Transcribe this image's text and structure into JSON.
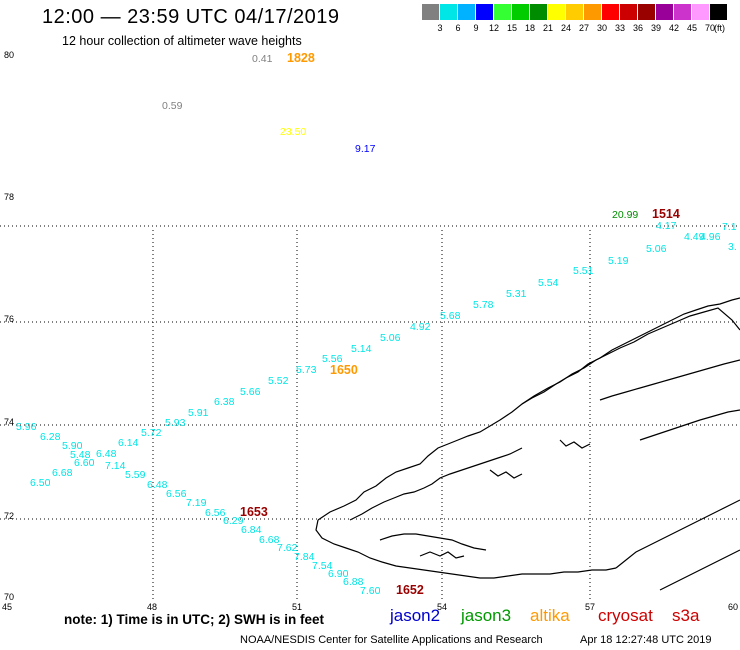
{
  "header": {
    "title": "12:00 — 23:59 UTC 04/17/2019",
    "subtitle": "12 hour collection of altimeter wave heights"
  },
  "legend": {
    "colors": [
      "#808080",
      "#00e5e5",
      "#00b2ff",
      "#0000ff",
      "#33ff33",
      "#00cc00",
      "#008c00",
      "#ffff00",
      "#ffcc00",
      "#ff9900",
      "#ff0000",
      "#cc0000",
      "#990000",
      "#990099",
      "#cc33cc",
      "#ff99ff",
      "#000000"
    ],
    "ticks": [
      "3",
      "6",
      "9",
      "12",
      "15",
      "18",
      "21",
      "24",
      "27",
      "30",
      "33",
      "36",
      "39",
      "42",
      "45",
      "70"
    ],
    "unit": "(ft)"
  },
  "axes": {
    "lat_labels": [
      "80",
      "78",
      "76",
      "74",
      "72",
      "70"
    ],
    "lon_labels": [
      "45",
      "48",
      "51",
      "54",
      "57",
      "60"
    ]
  },
  "points": [
    {
      "t": "0.41",
      "c": "#808080"
    },
    {
      "t": "1828",
      "c": "#ff9900",
      "bold": true
    },
    {
      "t": "0.59",
      "c": "#808080"
    },
    {
      "t": "23.50",
      "c": "#ffff00"
    },
    {
      "t": "9.17",
      "c": "#0000ff"
    },
    {
      "t": "20.99",
      "c": "#008c00"
    },
    {
      "t": "1514",
      "c": "#990000",
      "bold": true
    },
    {
      "t": "4.17",
      "c": "#00e5e5"
    },
    {
      "t": "7.1",
      "c": "#00e5e5"
    },
    {
      "t": "4.49",
      "c": "#00e5e5"
    },
    {
      "t": "4.96",
      "c": "#00e5e5"
    },
    {
      "t": "3.",
      "c": "#00e5e5"
    },
    {
      "t": "5.06",
      "c": "#00e5e5"
    },
    {
      "t": "5.19",
      "c": "#00e5e5"
    },
    {
      "t": "5.51",
      "c": "#00e5e5"
    },
    {
      "t": "5.54",
      "c": "#00e5e5"
    },
    {
      "t": "5.31",
      "c": "#00e5e5"
    },
    {
      "t": "5.78",
      "c": "#00e5e5"
    },
    {
      "t": "5.68",
      "c": "#00e5e5"
    },
    {
      "t": "4.92",
      "c": "#00e5e5"
    },
    {
      "t": "5.06",
      "c": "#00e5e5"
    },
    {
      "t": "5.14",
      "c": "#00e5e5"
    },
    {
      "t": "5.56",
      "c": "#00e5e5"
    },
    {
      "t": "5.73",
      "c": "#00e5e5"
    },
    {
      "t": "1650",
      "c": "#ff9900",
      "bold": true
    },
    {
      "t": "5.52",
      "c": "#00e5e5"
    },
    {
      "t": "5.66",
      "c": "#00e5e5"
    },
    {
      "t": "6.38",
      "c": "#00e5e5"
    },
    {
      "t": "5.91",
      "c": "#00e5e5"
    },
    {
      "t": "5.93",
      "c": "#00e5e5"
    },
    {
      "t": "5.72",
      "c": "#00e5e5"
    },
    {
      "t": "5.96",
      "c": "#00e5e5"
    },
    {
      "t": "6.28",
      "c": "#00e5e5"
    },
    {
      "t": "5.90",
      "c": "#00e5e5"
    },
    {
      "t": "6.14",
      "c": "#00e5e5"
    },
    {
      "t": "5.48",
      "c": "#00e5e5"
    },
    {
      "t": "6.48",
      "c": "#00e5e5"
    },
    {
      "t": "6.60",
      "c": "#00e5e5"
    },
    {
      "t": "7.14",
      "c": "#00e5e5"
    },
    {
      "t": "6.68",
      "c": "#00e5e5"
    },
    {
      "t": "5.59",
      "c": "#00e5e5"
    },
    {
      "t": "6.50",
      "c": "#00e5e5"
    },
    {
      "t": "6.48",
      "c": "#00e5e5"
    },
    {
      "t": "6.56",
      "c": "#00e5e5"
    },
    {
      "t": "7.19",
      "c": "#00e5e5"
    },
    {
      "t": "6.56",
      "c": "#00e5e5"
    },
    {
      "t": "1653",
      "c": "#990000",
      "bold": true
    },
    {
      "t": "6.29",
      "c": "#00e5e5"
    },
    {
      "t": "6.84",
      "c": "#00e5e5"
    },
    {
      "t": "6.68",
      "c": "#00e5e5"
    },
    {
      "t": "7.62",
      "c": "#00e5e5"
    },
    {
      "t": "7.84",
      "c": "#00e5e5"
    },
    {
      "t": "7.54",
      "c": "#00e5e5"
    },
    {
      "t": "6.90",
      "c": "#00e5e5"
    },
    {
      "t": "6.88",
      "c": "#00e5e5"
    },
    {
      "t": "7.60",
      "c": "#00e5e5"
    },
    {
      "t": "1652",
      "c": "#990000",
      "bold": true
    }
  ],
  "footer": {
    "note": "note:  1) Time is in UTC;  2) SWH is in feet",
    "satellites": [
      {
        "name": "jason2",
        "color": "#0000cc"
      },
      {
        "name": "jason3",
        "color": "#009900"
      },
      {
        "name": "altika",
        "color": "#ff9900"
      },
      {
        "name": "cryosat",
        "color": "#cc0000"
      },
      {
        "name": "s3a",
        "color": "#cc0000"
      }
    ],
    "credit": "NOAA/NESDIS Center for Satellite Applications and Research",
    "timestamp": "Apr 18 12:27:48 UTC 2019"
  }
}
